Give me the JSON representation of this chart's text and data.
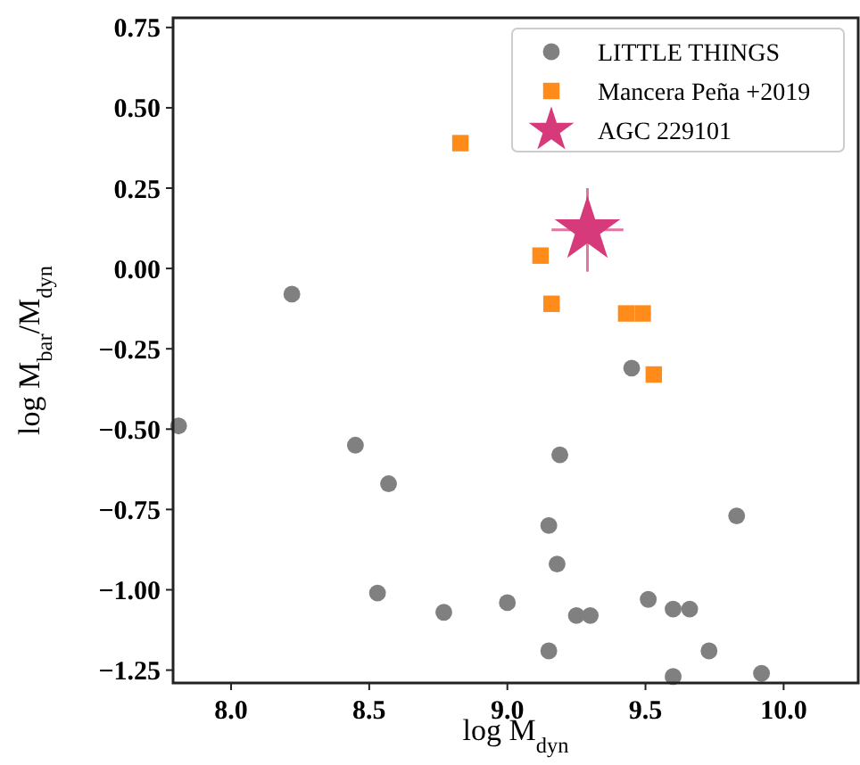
{
  "chart_data": {
    "type": "scatter",
    "xlabel": "log M$_{dyn}$",
    "ylabel": "log M$_{bar}$/M$_{dyn}$",
    "xlim": [
      7.79,
      10.27
    ],
    "ylim": [
      -1.29,
      0.78
    ],
    "xticks": [
      {
        "value": 8,
        "label": "8.0"
      },
      {
        "value": 8.5,
        "label": "8.5"
      },
      {
        "value": 9,
        "label": "9.0"
      },
      {
        "value": 9.5,
        "label": "9.5"
      },
      {
        "value": 10,
        "label": "10.0"
      }
    ],
    "yticks": [
      {
        "value": -1.25,
        "label": "−1.25"
      },
      {
        "value": -1,
        "label": "−1.00"
      },
      {
        "value": -0.75,
        "label": "−0.75"
      },
      {
        "value": -0.5,
        "label": "−0.50"
      },
      {
        "value": -0.25,
        "label": "−0.25"
      },
      {
        "value": 0,
        "label": "0.00"
      },
      {
        "value": 0.25,
        "label": "0.25"
      },
      {
        "value": 0.5,
        "label": "0.50"
      },
      {
        "value": 0.75,
        "label": "0.75"
      }
    ],
    "grid": false,
    "legend": "top right",
    "series": [
      {
        "name": "LITTLE THINGS",
        "color": "#808080",
        "marker": "circle",
        "x": [
          7.81,
          8.45,
          8.57,
          9.19,
          9.15,
          9.18,
          9.83,
          8.53,
          8.77,
          9.0,
          9.25,
          9.3,
          9.51,
          9.6,
          9.66,
          9.15,
          9.73,
          9.6,
          9.92,
          8.22,
          9.45
        ],
        "values": [
          -0.49,
          -0.55,
          -0.67,
          -0.58,
          -0.8,
          -0.92,
          -0.77,
          -1.01,
          -1.07,
          -1.04,
          -1.08,
          -1.08,
          -1.03,
          -1.06,
          -1.06,
          -1.19,
          -1.19,
          -1.27,
          -1.26,
          -0.08,
          -0.31
        ]
      },
      {
        "name": "Mancera Peña +2019",
        "color": "#ff8c1a",
        "marker": "square",
        "x": [
          8.83,
          9.12,
          9.16,
          9.43,
          9.49,
          9.53
        ],
        "values": [
          0.39,
          0.04,
          -0.11,
          -0.14,
          -0.14,
          -0.33
        ]
      },
      {
        "name": "AGC 229101",
        "color": "#d63a7a",
        "marker": "star",
        "x": [
          9.29
        ],
        "values": [
          0.12
        ],
        "errors": [
          0.13
        ],
        "xerrors": [
          0.13
        ]
      }
    ]
  }
}
